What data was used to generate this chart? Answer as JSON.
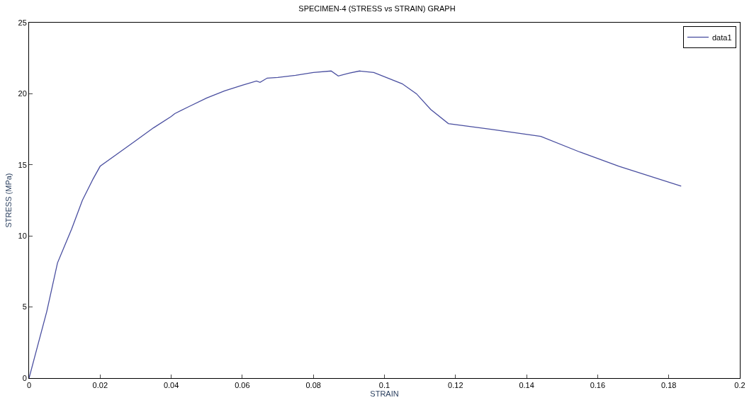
{
  "chart_data": {
    "type": "line",
    "title": "SPECIMEN-4 (STRESS vs STRAIN) GRAPH",
    "xlabel": "STRAIN",
    "ylabel": "STRESS (MPa)",
    "x": [
      0,
      0.005,
      0.008,
      0.01,
      0.012,
      0.015,
      0.018,
      0.02,
      0.025,
      0.03,
      0.035,
      0.04,
      0.041,
      0.045,
      0.05,
      0.055,
      0.06,
      0.064,
      0.065,
      0.067,
      0.07,
      0.075,
      0.08,
      0.085,
      0.087,
      0.09,
      0.093,
      0.097,
      0.1,
      0.105,
      0.109,
      0.113,
      0.118,
      0.13,
      0.144,
      0.155,
      0.166,
      0.1835
    ],
    "series": [
      {
        "name": "data1",
        "color": "#4a4fa0",
        "values": [
          0,
          4.7,
          8.1,
          9.3,
          10.5,
          12.5,
          14,
          14.9,
          15.8,
          16.7,
          17.6,
          18.4,
          18.6,
          19.1,
          19.7,
          20.2,
          20.6,
          20.9,
          20.8,
          21.1,
          21.15,
          21.3,
          21.5,
          21.6,
          21.25,
          21.45,
          21.6,
          21.5,
          21.2,
          20.7,
          20,
          18.9,
          17.9,
          17.5,
          17,
          15.9,
          14.9,
          13.5
        ]
      }
    ],
    "xlim": [
      0,
      0.2
    ],
    "xticks": [
      0,
      0.02,
      0.04,
      0.06,
      0.08,
      0.1,
      0.12,
      0.14,
      0.16,
      0.18,
      0.2
    ],
    "ylim": [
      0,
      25
    ],
    "yticks": [
      0,
      5,
      10,
      15,
      20,
      25
    ],
    "legend": "top right",
    "marker": "none",
    "line_style": "solid"
  }
}
